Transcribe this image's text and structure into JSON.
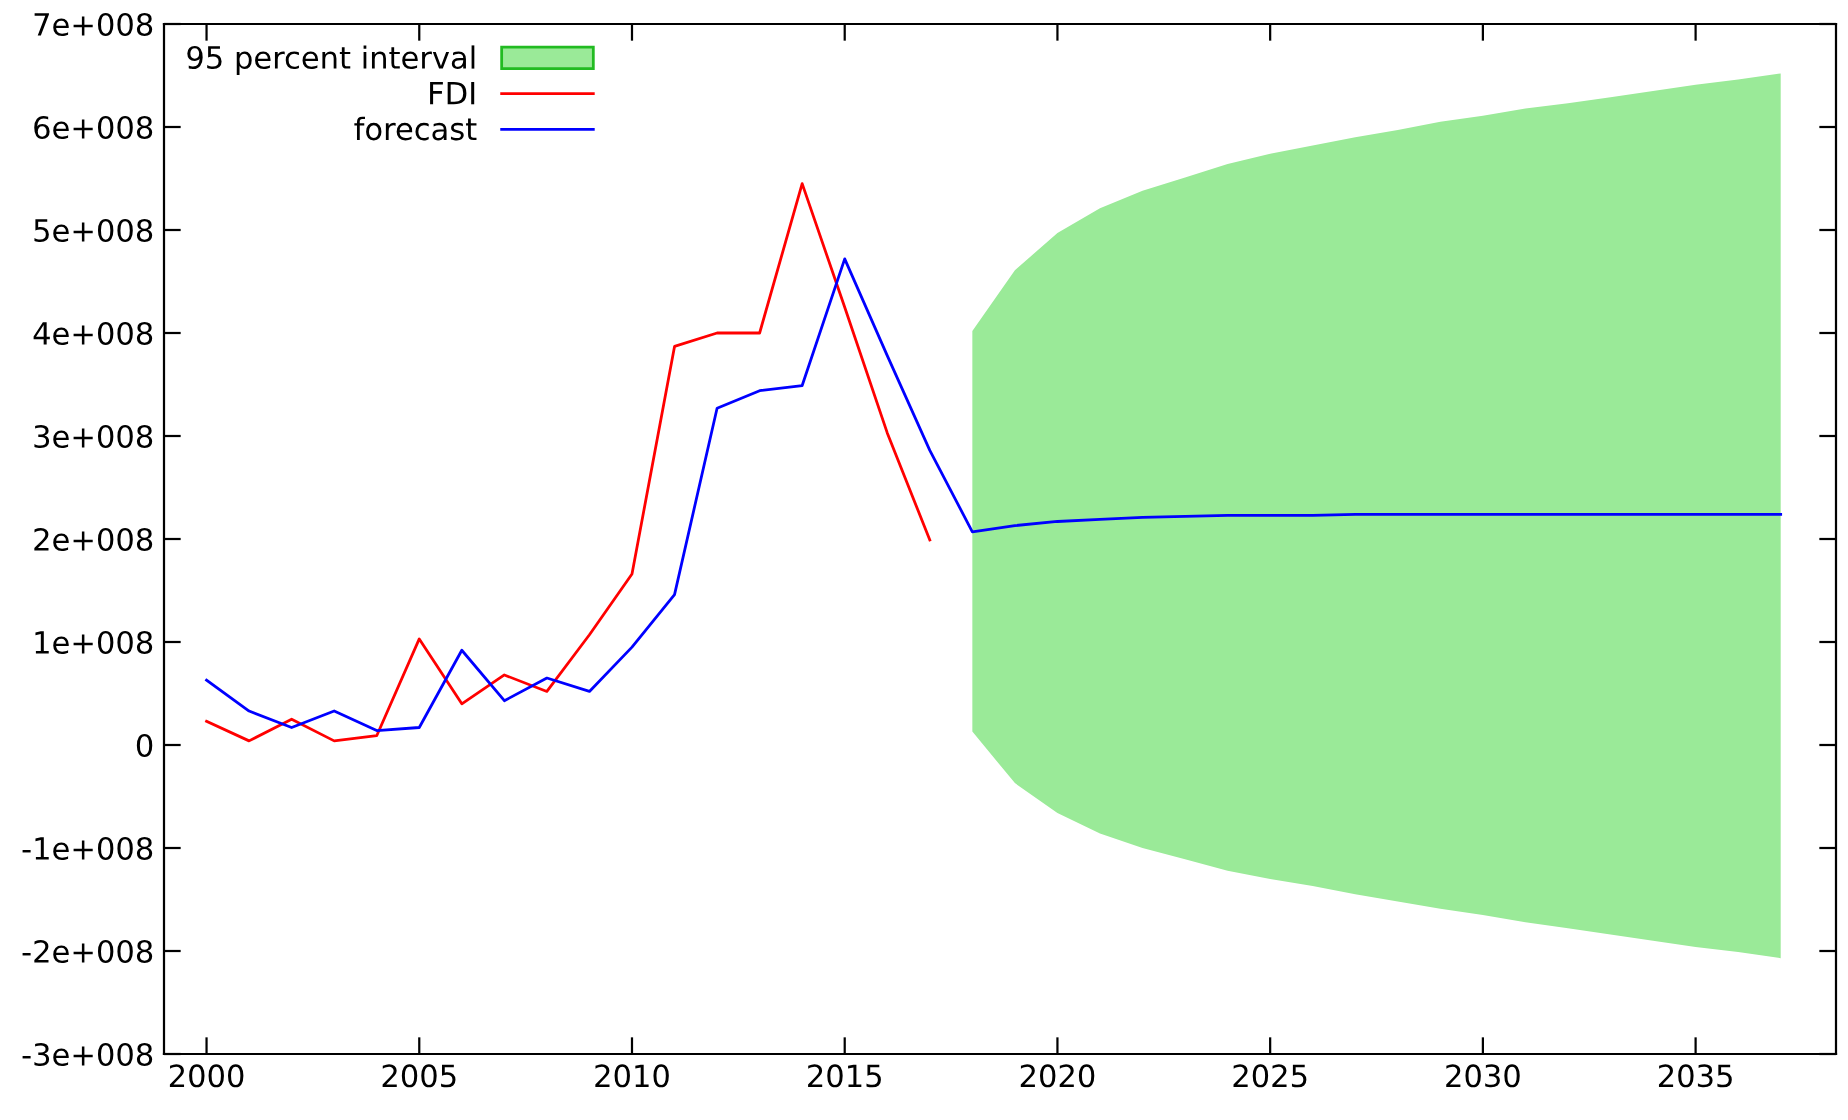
{
  "chart_data": {
    "type": "line",
    "xlim": [
      1999,
      2038.3
    ],
    "xticks": [
      2000,
      2005,
      2010,
      2015,
      2020,
      2025,
      2030,
      2035
    ],
    "ylim": [
      -300000000,
      700000000
    ],
    "yticks": [
      {
        "value": -300000000,
        "label": "-3e+008"
      },
      {
        "value": -200000000,
        "label": "-2e+008"
      },
      {
        "value": -100000000,
        "label": "-1e+008"
      },
      {
        "value": 0,
        "label": "0"
      },
      {
        "value": 100000000,
        "label": "1e+008"
      },
      {
        "value": 200000000,
        "label": "2e+008"
      },
      {
        "value": 300000000,
        "label": "3e+008"
      },
      {
        "value": 400000000,
        "label": "4e+008"
      },
      {
        "value": 500000000,
        "label": "5e+008"
      },
      {
        "value": 600000000,
        "label": "6e+008"
      },
      {
        "value": 700000000,
        "label": "7e+008"
      }
    ],
    "grid": false,
    "legend": "top left",
    "series": [
      {
        "name": "95 percent interval",
        "color": "#9aea98",
        "x": [
          2018,
          2019,
          2020,
          2021,
          2022,
          2023,
          2024,
          2025,
          2026,
          2027,
          2028,
          2029,
          2030,
          2031,
          2032,
          2033,
          2034,
          2035,
          2036,
          2037
        ],
        "values": [
          null,
          null,
          null,
          null,
          null,
          null,
          null,
          null,
          null,
          null,
          null,
          null,
          null,
          null,
          null,
          null,
          null,
          null,
          null,
          null
        ],
        "upper": [
          402000000,
          461000000,
          497000000,
          521000000,
          538000000,
          551000000,
          564000000,
          574000000,
          582000000,
          590000000,
          597000000,
          605000000,
          611000000,
          618000000,
          623000000,
          629000000,
          635000000,
          641000000,
          646000000,
          652000000
        ],
        "lower": [
          13000000,
          -37000000,
          -66000000,
          -86000000,
          -100000000,
          -111000000,
          -122000000,
          -130000000,
          -137000000,
          -145000000,
          -152000000,
          -159000000,
          -165000000,
          -172000000,
          -178000000,
          -184000000,
          -190000000,
          -196000000,
          -201000000,
          -207000000
        ]
      },
      {
        "name": "FDI",
        "color": "#ff0000",
        "x": [
          2000,
          2001,
          2002,
          2003,
          2004,
          2005,
          2006,
          2007,
          2008,
          2009,
          2010,
          2011,
          2012,
          2013,
          2014,
          2015,
          2016,
          2017
        ],
        "values": [
          23000000,
          4000000,
          25000000,
          4000000,
          9000000,
          103000000,
          40000000,
          68000000,
          52000000,
          107000000,
          166000000,
          387000000,
          400000000,
          400000000,
          545000000,
          425000000,
          303000000,
          199000000
        ]
      },
      {
        "name": "forecast",
        "color": "#0000ff",
        "x": [
          2000,
          2001,
          2002,
          2003,
          2004,
          2005,
          2006,
          2007,
          2008,
          2009,
          2010,
          2011,
          2012,
          2013,
          2014,
          2015,
          2016,
          2017,
          2018,
          2019,
          2020,
          2021,
          2022,
          2023,
          2024,
          2025,
          2026,
          2027,
          2028,
          2029,
          2030,
          2031,
          2032,
          2033,
          2034,
          2035,
          2036,
          2037
        ],
        "values": [
          63000000,
          33000000,
          17000000,
          33000000,
          14000000,
          17000000,
          92000000,
          43000000,
          65000000,
          52000000,
          95000000,
          146000000,
          327000000,
          344000000,
          349000000,
          472000000,
          378000000,
          286000000,
          207000000,
          213000000,
          217000000,
          219000000,
          221000000,
          222000000,
          223000000,
          223000000,
          223000000,
          224000000,
          224000000,
          224000000,
          224000000,
          224000000,
          224000000,
          224000000,
          224000000,
          224000000,
          224000000,
          224000000
        ]
      }
    ]
  }
}
